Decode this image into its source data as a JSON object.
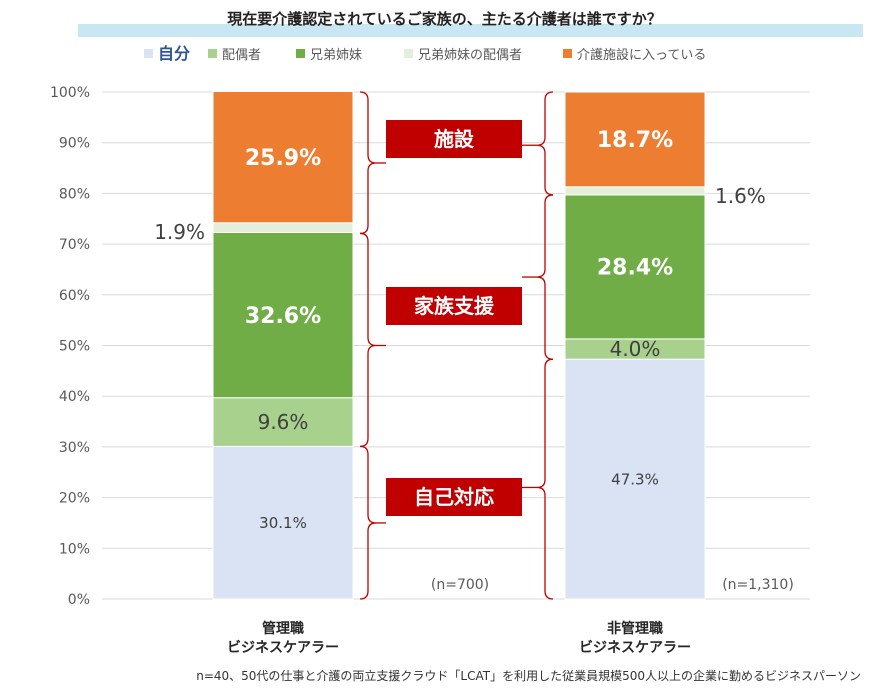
{
  "chart_data": {
    "type": "bar",
    "stacked": true,
    "title": "現在要介護認定されているご家族の、主たる介護者は誰ですか？",
    "categories": [
      "管理職\nビジネスケアラー",
      "非管理職\nビジネスケアラー"
    ],
    "category_lines": [
      [
        "管理職",
        "ビジネスケアラー"
      ],
      [
        "非管理職",
        "ビジネスケアラー"
      ]
    ],
    "n_labels": [
      "(n=700)",
      "(n=1,310)"
    ],
    "ylim": [
      0,
      100
    ],
    "yticks": [
      "0%",
      "10%",
      "20%",
      "30%",
      "40%",
      "50%",
      "60%",
      "70%",
      "80%",
      "90%",
      "100%"
    ],
    "grid": true,
    "legend_position": "top",
    "series": [
      {
        "name": "自分",
        "values": [
          30.1,
          47.3
        ],
        "color": "#dae3f3",
        "labels": [
          "30.1%",
          "47.3%"
        ]
      },
      {
        "name": "配偶者",
        "values": [
          9.6,
          4.0
        ],
        "color": "#a9d18e",
        "labels": [
          "9.6%",
          "4.0%"
        ]
      },
      {
        "name": "兄弟姉妹",
        "values": [
          32.6,
          28.4
        ],
        "color": "#70ad47",
        "labels": [
          "32.6%",
          "28.4%"
        ]
      },
      {
        "name": "兄弟姉妹の配偶者",
        "values": [
          1.9,
          1.6
        ],
        "color": "#e2efda",
        "labels": [
          "1.9%",
          "1.6%"
        ]
      },
      {
        "name": "介護施設に入っている",
        "values": [
          25.9,
          18.7
        ],
        "color": "#ed7d31",
        "labels": [
          "25.9%",
          "18.7%"
        ]
      }
    ],
    "group_labels": [
      "施設",
      "家族支援",
      "自己対応"
    ],
    "group_color": "#c00000"
  },
  "footnote": "n=40、50代の仕事と介護の両立支援クラウド「LCAT」を利用した従業員規模500人以上の企業に勤めるビジネスパーソン"
}
